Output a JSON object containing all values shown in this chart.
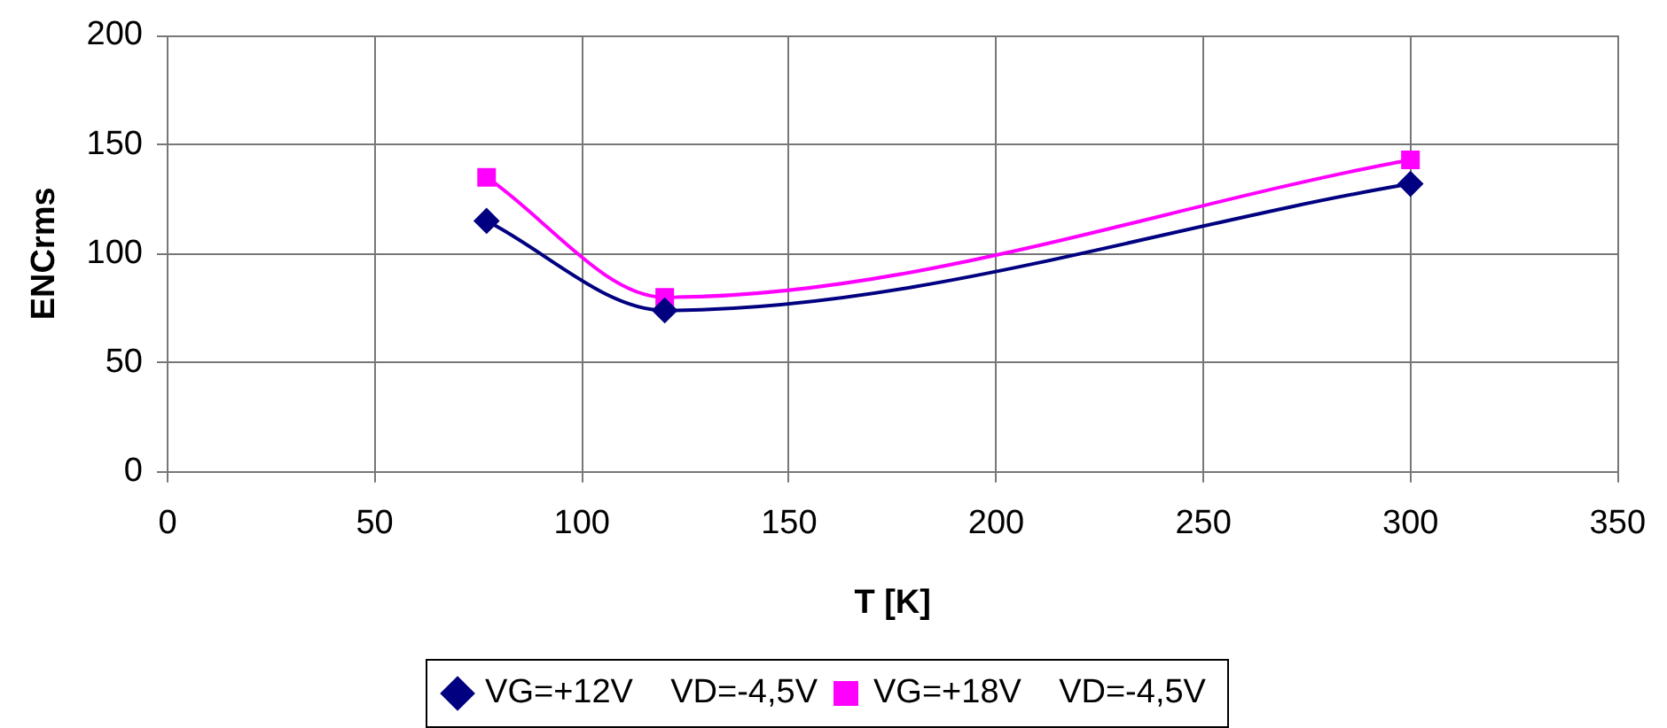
{
  "chart_data": {
    "type": "line",
    "xlabel": "T [K]",
    "ylabel": "ENCrms",
    "x": [
      77,
      120,
      300
    ],
    "series": [
      {
        "name": "VG=+12V    VD=-4,5V",
        "color": "#000080",
        "values": [
          115,
          74,
          132
        ],
        "marker": "diamond"
      },
      {
        "name": "VG=+18V    VD=-4,5V",
        "color": "#ff00ff",
        "values": [
          135,
          80,
          143
        ],
        "marker": "square"
      }
    ],
    "xlim": [
      0,
      350
    ],
    "xticks": [
      0,
      50,
      100,
      150,
      200,
      250,
      300,
      350
    ],
    "ylim": [
      0,
      200
    ],
    "yticks": [
      0,
      50,
      100,
      150,
      200
    ],
    "grid": true,
    "legend": "bottom",
    "line_style": "solid"
  }
}
